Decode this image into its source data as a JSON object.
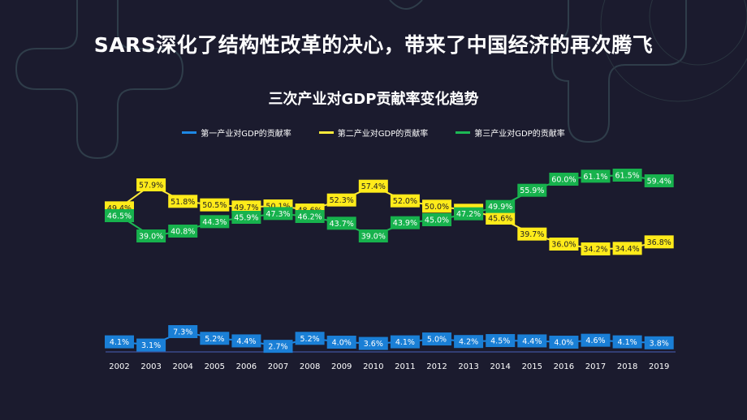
{
  "slide": {
    "title": "SARS深化了结构性改革的决心，带来了中国经济的再次腾飞"
  },
  "chart_data": {
    "type": "line",
    "title": "三次产业对GDP贡献率变化趋势",
    "categories": [
      "2002",
      "2003",
      "2004",
      "2005",
      "2006",
      "2007",
      "2008",
      "2009",
      "2010",
      "2011",
      "2012",
      "2013",
      "2014",
      "2015",
      "2016",
      "2017",
      "2018",
      "2019"
    ],
    "series": [
      {
        "name": "第一产业对GDP的贡献率",
        "color": "#1e88e5",
        "values": [
          4.1,
          3.1,
          7.3,
          5.2,
          4.4,
          2.7,
          5.2,
          4.0,
          3.6,
          4.1,
          5.0,
          4.2,
          4.5,
          4.4,
          4.0,
          4.6,
          4.1,
          3.8
        ]
      },
      {
        "name": "第二产业对GDP的贡献率",
        "color": "#ffeb3b",
        "values": [
          49.4,
          57.9,
          51.8,
          50.5,
          49.7,
          50.1,
          48.6,
          52.3,
          57.4,
          52.0,
          50.0,
          48.5,
          45.6,
          39.7,
          36.0,
          34.2,
          34.4,
          36.8
        ]
      },
      {
        "name": "第三产业对GDP的贡献率",
        "color": "#1db954",
        "values": [
          46.5,
          39.0,
          40.8,
          44.3,
          45.9,
          47.3,
          46.2,
          43.7,
          39.0,
          43.9,
          45.0,
          47.2,
          49.9,
          55.9,
          60.0,
          61.1,
          61.5,
          59.4
        ]
      }
    ],
    "value_suffix": "%",
    "grid": false,
    "legend_position": "top"
  }
}
